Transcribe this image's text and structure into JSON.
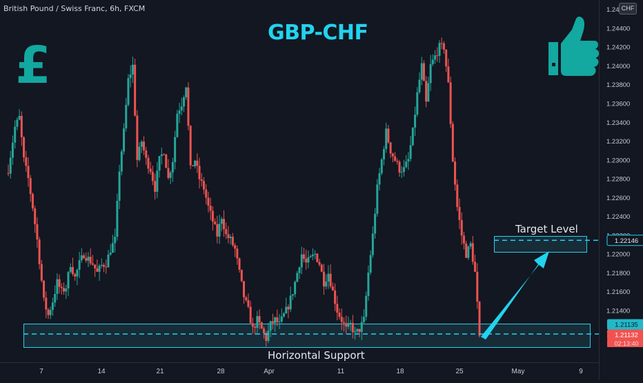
{
  "header": {
    "symbol_info": "British Pound / Swiss Franc, 6h, FXCM"
  },
  "title": "GBP-CHF",
  "currency_badge": "CHF",
  "icons": {
    "left": "pound-sign-icon",
    "right": "thumbs-up-icon"
  },
  "colors": {
    "background": "#121722",
    "bull": "#26a69a",
    "bear": "#ef5350",
    "accent": "#22d3ee",
    "support_zone": "#1b3440"
  },
  "annotations": {
    "target_label": "Target Level",
    "support_label": "Horizontal Support",
    "target_price_tag": "1.22146",
    "support_price_tag": "1.21135",
    "current_price_tag": "1.21132",
    "countdown": "02:13:40"
  },
  "chart_data": {
    "type": "candlestick",
    "ylim": [
      1.2085,
      1.247
    ],
    "y_ticks": [
      "1.24600",
      "1.24400",
      "1.24200",
      "1.24000",
      "1.23800",
      "1.23600",
      "1.23400",
      "1.23200",
      "1.23000",
      "1.22800",
      "1.22600",
      "1.22400",
      "1.22200",
      "1.22000",
      "1.21800",
      "1.21600",
      "1.21400",
      "1.21200"
    ],
    "x_ticks": [
      "7",
      "14",
      "21",
      "28",
      "Apr",
      "11",
      "18",
      "25",
      "May",
      "9"
    ],
    "support_zone": [
      1.2098,
      1.2122
    ],
    "target_zone": [
      1.2204,
      1.222
    ],
    "target_level": 1.22146,
    "support_level": 1.21135,
    "current_price": 1.21132,
    "close_path": [
      [
        0,
        1.229
      ],
      [
        3,
        1.2335
      ],
      [
        5,
        1.2345
      ],
      [
        7,
        1.23
      ],
      [
        9,
        1.228
      ],
      [
        11,
        1.225
      ],
      [
        13,
        1.2215
      ],
      [
        16,
        1.215
      ],
      [
        18,
        1.2135
      ],
      [
        20,
        1.215
      ],
      [
        22,
        1.217
      ],
      [
        24,
        1.216
      ],
      [
        26,
        1.2165
      ],
      [
        28,
        1.219
      ],
      [
        30,
        1.2175
      ],
      [
        32,
        1.219
      ],
      [
        34,
        1.22
      ],
      [
        36,
        1.2195
      ],
      [
        38,
        1.219
      ],
      [
        40,
        1.218
      ],
      [
        42,
        1.2188
      ],
      [
        44,
        1.219
      ],
      [
        46,
        1.2205
      ],
      [
        48,
        1.2215
      ],
      [
        50,
        1.229
      ],
      [
        52,
        1.233
      ],
      [
        54,
        1.2385
      ],
      [
        56,
        1.24
      ],
      [
        58,
        1.23
      ],
      [
        60,
        1.232
      ],
      [
        62,
        1.23
      ],
      [
        64,
        1.229
      ],
      [
        66,
        1.227
      ],
      [
        68,
        1.23
      ],
      [
        70,
        1.231
      ],
      [
        72,
        1.228
      ],
      [
        74,
        1.23
      ],
      [
        76,
        1.235
      ],
      [
        78,
        1.236
      ],
      [
        80,
        1.238
      ],
      [
        82,
        1.229
      ],
      [
        84,
        1.23
      ],
      [
        86,
        1.228
      ],
      [
        88,
        1.227
      ],
      [
        90,
        1.225
      ],
      [
        92,
        1.2235
      ],
      [
        94,
        1.222
      ],
      [
        96,
        1.224
      ],
      [
        98,
        1.222
      ],
      [
        100,
        1.2215
      ],
      [
        102,
        1.2205
      ],
      [
        104,
        1.218
      ],
      [
        106,
        1.2155
      ],
      [
        108,
        1.214
      ],
      [
        110,
        1.212
      ],
      [
        112,
        1.213
      ],
      [
        114,
        1.212
      ],
      [
        116,
        1.211
      ],
      [
        118,
        1.2125
      ],
      [
        120,
        1.213
      ],
      [
        122,
        1.2125
      ],
      [
        124,
        1.2135
      ],
      [
        126,
        1.2145
      ],
      [
        128,
        1.216
      ],
      [
        130,
        1.218
      ],
      [
        132,
        1.22
      ],
      [
        134,
        1.219
      ],
      [
        136,
        1.2195
      ],
      [
        138,
        1.22
      ],
      [
        140,
        1.219
      ],
      [
        142,
        1.217
      ],
      [
        144,
        1.218
      ],
      [
        146,
        1.216
      ],
      [
        148,
        1.214
      ],
      [
        150,
        1.213
      ],
      [
        152,
        1.212
      ],
      [
        154,
        1.2125
      ],
      [
        156,
        1.2115
      ],
      [
        158,
        1.212
      ],
      [
        160,
        1.213
      ],
      [
        162,
        1.218
      ],
      [
        164,
        1.222
      ],
      [
        166,
        1.227
      ],
      [
        168,
        1.23
      ],
      [
        170,
        1.233
      ],
      [
        172,
        1.231
      ],
      [
        174,
        1.23
      ],
      [
        176,
        1.229
      ],
      [
        178,
        1.229
      ],
      [
        180,
        1.23
      ],
      [
        182,
        1.233
      ],
      [
        184,
        1.237
      ],
      [
        186,
        1.24
      ],
      [
        188,
        1.236
      ],
      [
        190,
        1.24
      ],
      [
        192,
        1.241
      ],
      [
        194,
        1.242
      ],
      [
        196,
        1.242
      ],
      [
        198,
        1.238
      ],
      [
        200,
        1.23
      ],
      [
        202,
        1.225
      ],
      [
        204,
        1.222
      ],
      [
        206,
        1.22
      ],
      [
        208,
        1.221
      ],
      [
        210,
        1.218
      ],
      [
        212,
        1.2113
      ]
    ]
  }
}
